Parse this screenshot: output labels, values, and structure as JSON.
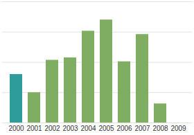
{
  "chart_data": {
    "type": "bar",
    "categories": [
      "2000",
      "2001",
      "2002",
      "2003",
      "2004",
      "2005",
      "2006",
      "2007",
      "2008",
      "2009"
    ],
    "values": [
      1.6,
      1.0,
      2.07,
      2.15,
      3.03,
      3.4,
      2.02,
      2.92,
      0.63,
      0
    ],
    "colors": [
      "#2e9c9a",
      "#7fae62",
      "#7fae62",
      "#7fae62",
      "#7fae62",
      "#7fae62",
      "#7fae62",
      "#7fae62",
      "#7fae62",
      "#7fae62"
    ],
    "ylim": [
      0,
      4
    ],
    "yticks": [
      0,
      1,
      2,
      3,
      4
    ],
    "grid": true,
    "tick_labels": "x"
  }
}
